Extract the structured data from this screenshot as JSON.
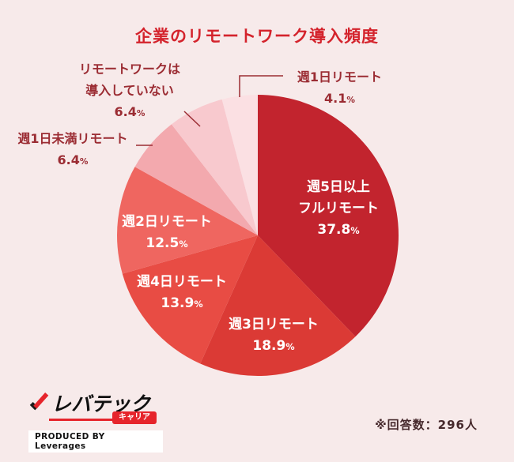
{
  "page": {
    "background": "#f7eaea",
    "title_color": "#d4232c",
    "outside_label_color": "#9b2c33"
  },
  "chart_data": {
    "type": "pie",
    "title": "企業のリモートワーク導入頻度",
    "unit": "%",
    "start_angle_deg": -90,
    "direction": "clockwise",
    "legend": "none",
    "slices": [
      {
        "label": "週5日以上フルリモート",
        "label_lines": [
          "週5日以上",
          "フルリモート"
        ],
        "value": 37.8,
        "color": "#c2242e",
        "label_placement": "inside"
      },
      {
        "label": "週3日リモート",
        "value": 18.9,
        "color": "#db3a35",
        "label_placement": "inside"
      },
      {
        "label": "週4日リモート",
        "value": 13.9,
        "color": "#e84c44",
        "label_placement": "inside"
      },
      {
        "label": "週2日リモート",
        "value": 12.5,
        "color": "#ef6660",
        "label_placement": "inside"
      },
      {
        "label": "週1日未満リモート",
        "value": 6.4,
        "color": "#f3a9ae",
        "label_placement": "outside"
      },
      {
        "label": "リモートワークは導入していない",
        "label_lines": [
          "リモートワークは",
          "導入していない"
        ],
        "value": 6.4,
        "color": "#f8c9ce",
        "label_placement": "outside"
      },
      {
        "label": "週1日リモート",
        "value": 4.1,
        "color": "#fbe0e3",
        "label_placement": "outside"
      }
    ]
  },
  "footer": {
    "respondents_note": "※回答数：296人"
  },
  "logo": {
    "brand": "レバテック",
    "badge": "キャリア",
    "produced_by": "PRODUCED BY Leverages"
  }
}
